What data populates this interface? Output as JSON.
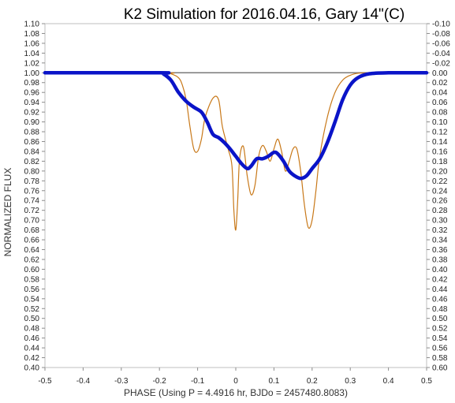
{
  "chart_data": {
    "type": "line",
    "title": "K2 Simulation for 2016.04.16, Gary 14\"(C)",
    "xlabel": "PHASE (Using P = 4.4916 hr, BJDo = 2457480.8083)",
    "ylabel": "NORMALIZED FLUX",
    "xlim": [
      -0.5,
      0.5
    ],
    "ylim": [
      0.4,
      1.1
    ],
    "y2lim": [
      -0.1,
      0.6
    ],
    "y2_inverted": true,
    "x_ticks": [
      "-0.5",
      "-0.4",
      "-0.3",
      "-0.2",
      "-0.1",
      "0",
      "0.1",
      "0.2",
      "0.3",
      "0.4",
      "0.5"
    ],
    "y_ticks": [
      "1.10",
      "1.08",
      "1.06",
      "1.04",
      "1.02",
      "1.00",
      "0.98",
      "0.96",
      "0.94",
      "0.92",
      "0.90",
      "0.88",
      "0.86",
      "0.84",
      "0.82",
      "0.80",
      "0.78",
      "0.76",
      "0.74",
      "0.72",
      "0.70",
      "0.68",
      "0.66",
      "0.64",
      "0.62",
      "0.60",
      "0.58",
      "0.56",
      "0.54",
      "0.52",
      "0.50",
      "0.48",
      "0.46",
      "0.44",
      "0.42",
      "0.40"
    ],
    "y2_ticks": [
      "-0.10",
      "-0.08",
      "-0.06",
      "-0.04",
      "-0.02",
      "0.00",
      "0.02",
      "0.04",
      "0.06",
      "0.08",
      "0.10",
      "0.12",
      "0.14",
      "0.16",
      "0.18",
      "0.20",
      "0.22",
      "0.24",
      "0.26",
      "0.28",
      "0.30",
      "0.32",
      "0.34",
      "0.36",
      "0.38",
      "0.40",
      "0.42",
      "0.44",
      "0.46",
      "0.48",
      "0.50",
      "0.52",
      "0.54",
      "0.56",
      "0.58",
      "0.60"
    ],
    "grid": false,
    "colors": {
      "smoothed": "#0a14c8",
      "unsmoothed": "#c87818",
      "reference": "#7a7a7a"
    },
    "series": [
      {
        "values_x": [
          -0.5,
          -0.2,
          -0.19,
          -0.17,
          -0.15,
          -0.13,
          -0.11,
          -0.09,
          -0.075,
          -0.06,
          -0.045,
          -0.03,
          -0.015,
          0.0,
          0.015,
          0.03,
          0.04,
          0.055,
          0.07,
          0.085,
          0.1,
          0.11,
          0.125,
          0.14,
          0.155,
          0.17,
          0.185,
          0.2,
          0.22,
          0.24,
          0.26,
          0.28,
          0.3,
          0.32,
          0.35,
          0.4,
          0.5
        ],
        "values_y": [
          1.0,
          1.0,
          0.998,
          0.985,
          0.96,
          0.942,
          0.93,
          0.92,
          0.9,
          0.875,
          0.868,
          0.858,
          0.845,
          0.83,
          0.815,
          0.805,
          0.81,
          0.825,
          0.825,
          0.83,
          0.838,
          0.835,
          0.82,
          0.8,
          0.79,
          0.785,
          0.79,
          0.805,
          0.825,
          0.858,
          0.9,
          0.945,
          0.975,
          0.99,
          0.998,
          1.0,
          1.0
        ]
      },
      {
        "values_x": [
          -0.5,
          -0.19,
          -0.17,
          -0.15,
          -0.14,
          -0.13,
          -0.12,
          -0.11,
          -0.1,
          -0.09,
          -0.08,
          -0.06,
          -0.045,
          -0.035,
          -0.02,
          -0.01,
          -0.005,
          0.0,
          0.005,
          0.01,
          0.02,
          0.03,
          0.04,
          0.05,
          0.06,
          0.07,
          0.08,
          0.09,
          0.1,
          0.11,
          0.12,
          0.13,
          0.14,
          0.15,
          0.16,
          0.17,
          0.18,
          0.19,
          0.2,
          0.21,
          0.22,
          0.24,
          0.26,
          0.28,
          0.3,
          0.32,
          0.35,
          0.4,
          0.5
        ],
        "values_y": [
          1.0,
          1.0,
          0.998,
          0.99,
          0.975,
          0.945,
          0.89,
          0.845,
          0.84,
          0.865,
          0.91,
          0.948,
          0.945,
          0.89,
          0.845,
          0.81,
          0.72,
          0.68,
          0.74,
          0.825,
          0.85,
          0.79,
          0.752,
          0.77,
          0.83,
          0.852,
          0.84,
          0.82,
          0.845,
          0.865,
          0.84,
          0.8,
          0.82,
          0.845,
          0.845,
          0.8,
          0.73,
          0.685,
          0.7,
          0.76,
          0.83,
          0.91,
          0.96,
          0.985,
          0.995,
          0.999,
          1.0,
          1.0,
          1.0
        ]
      }
    ],
    "reference_line_y": 1.0
  }
}
